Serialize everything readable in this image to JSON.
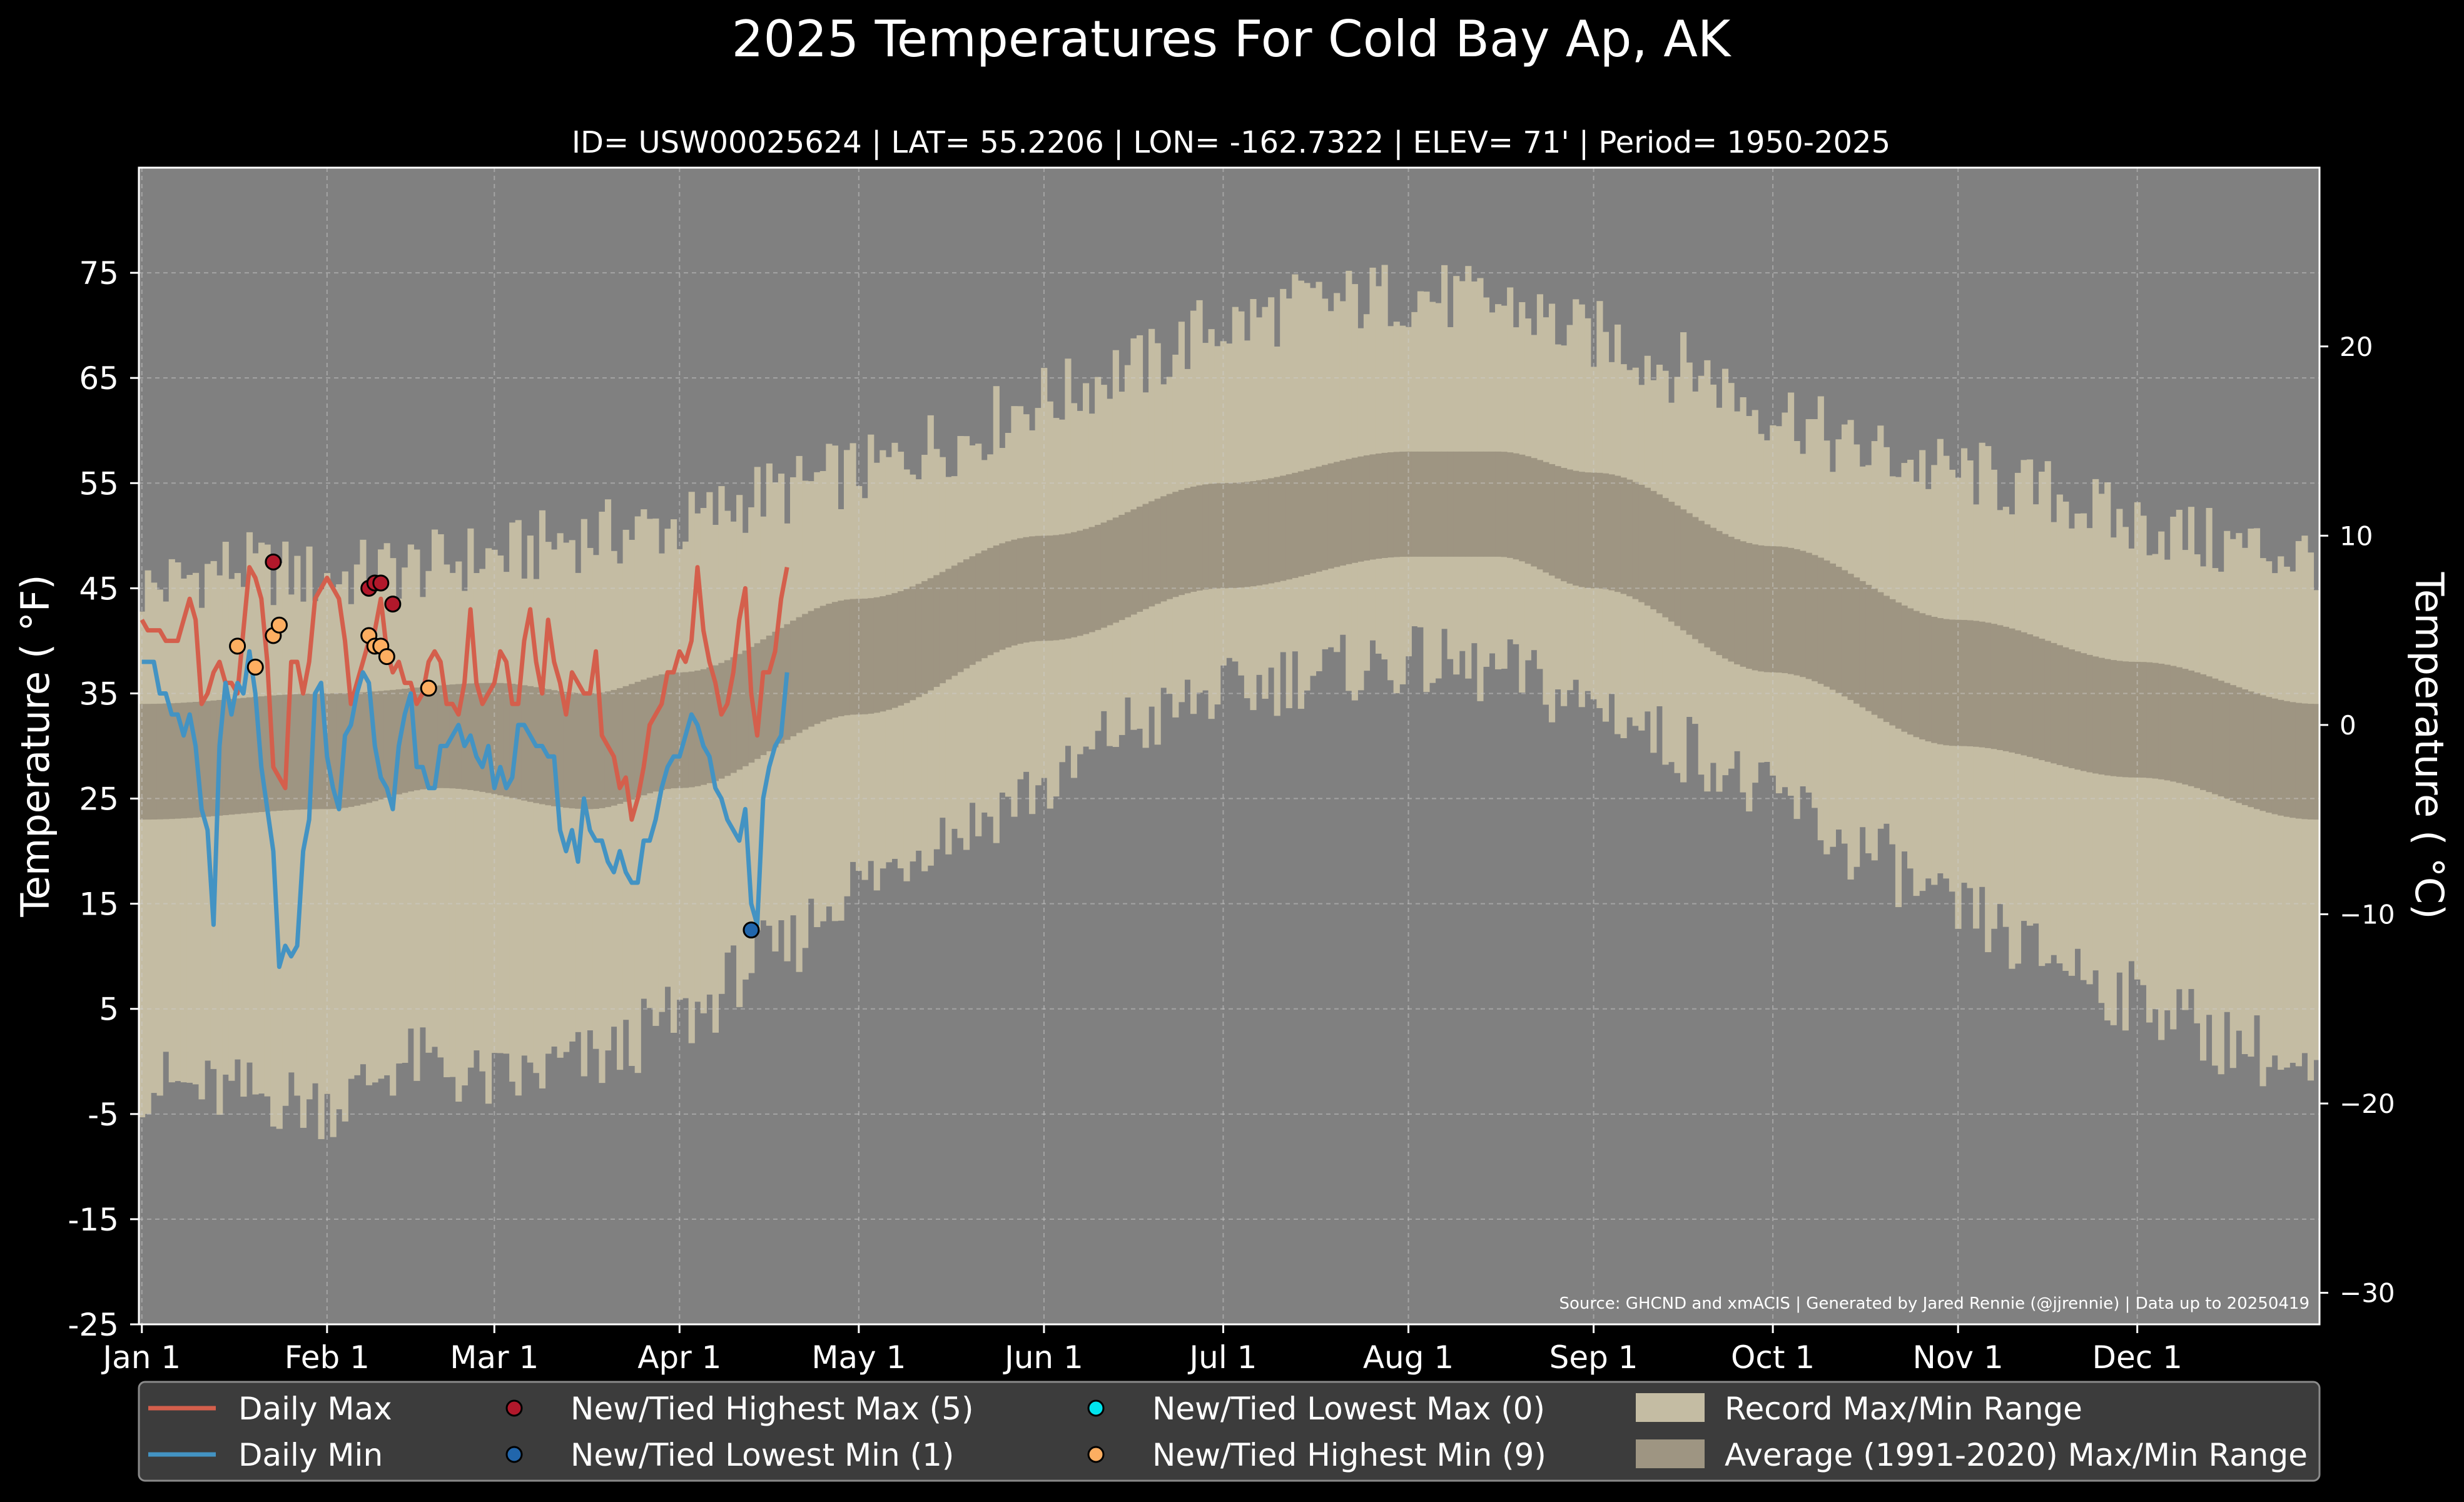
{
  "chart_data": {
    "type": "line",
    "title": "2025 Temperatures For Cold Bay Ap, AK",
    "subtitle": "ID= USW00025624 | LAT= 55.2206 | LON= -162.7322 | ELEV= 71' | Period= 1950-2025",
    "ylabel_left": "Temperature ($^\\circ$F)",
    "ylabel_left_display": "Temperature ( °F)",
    "ylabel_right_display": "Temperature ( °C)",
    "source": "Source: GHCND and xmACIS | Generated by Jared Rennie (@jjrennie) | Data up to 20250419",
    "ylim_f": [
      -25,
      85
    ],
    "xlim_day": [
      -0.5,
      364.5
    ],
    "yticks_left": [
      75,
      65,
      55,
      45,
      35,
      25,
      15,
      5,
      -5,
      -15,
      -25
    ],
    "yticks_left_labels": [
      "75",
      "65",
      "55",
      "45",
      "35",
      "25",
      "15",
      "5",
      "-5",
      "-15",
      "-25"
    ],
    "yticks_right": [
      20,
      10,
      0,
      -10,
      -20,
      -30
    ],
    "yticks_right_labels": [
      "20",
      "10",
      "0",
      "−10",
      "−20",
      "−30"
    ],
    "x_ticks": [
      {
        "label": "Jan 1",
        "day": 0
      },
      {
        "label": "Feb 1",
        "day": 31
      },
      {
        "label": "Mar 1",
        "day": 59
      },
      {
        "label": "Apr 1",
        "day": 90
      },
      {
        "label": "May 1",
        "day": 120
      },
      {
        "label": "Jun 1",
        "day": 151
      },
      {
        "label": "Jul 1",
        "day": 181
      },
      {
        "label": "Aug 1",
        "day": 212
      },
      {
        "label": "Sep 1",
        "day": 243
      },
      {
        "label": "Oct 1",
        "day": 273
      },
      {
        "label": "Nov 1",
        "day": 304
      },
      {
        "label": "Dec 1",
        "day": 334
      }
    ],
    "grid": true,
    "legend_position": "bottom",
    "colors": {
      "background": "#000000",
      "plot_background": "#808080",
      "record_range": "#c4bca3",
      "average_range": "#9e9582",
      "daily_max": "#d45f4c",
      "daily_min": "#4393c3",
      "highest_max_marker": "#b2182b",
      "lowest_min_marker": "#2166ac",
      "lowest_max_marker": "#00e5ee",
      "highest_min_marker": "#fdae61",
      "legend_bg": "#3c3c3c"
    },
    "record_max_anchors": [
      [
        0,
        45
      ],
      [
        15,
        47
      ],
      [
        31,
        46
      ],
      [
        45,
        47
      ],
      [
        59,
        48
      ],
      [
        75,
        50
      ],
      [
        90,
        51
      ],
      [
        105,
        54
      ],
      [
        120,
        56
      ],
      [
        135,
        59
      ],
      [
        151,
        63
      ],
      [
        166,
        66
      ],
      [
        181,
        70
      ],
      [
        196,
        72
      ],
      [
        212,
        73
      ],
      [
        227,
        72
      ],
      [
        243,
        69
      ],
      [
        258,
        66
      ],
      [
        273,
        62
      ],
      [
        288,
        58
      ],
      [
        304,
        56
      ],
      [
        319,
        54
      ],
      [
        334,
        51
      ],
      [
        350,
        49
      ],
      [
        364,
        48
      ]
    ],
    "record_min_anchors": [
      [
        0,
        -2
      ],
      [
        15,
        -3
      ],
      [
        31,
        -4
      ],
      [
        45,
        0
      ],
      [
        59,
        -2
      ],
      [
        75,
        0
      ],
      [
        90,
        4
      ],
      [
        105,
        10
      ],
      [
        120,
        17
      ],
      [
        135,
        22
      ],
      [
        151,
        26
      ],
      [
        166,
        32
      ],
      [
        181,
        35
      ],
      [
        196,
        37
      ],
      [
        212,
        38
      ],
      [
        227,
        37
      ],
      [
        243,
        34
      ],
      [
        258,
        30
      ],
      [
        273,
        25
      ],
      [
        288,
        20
      ],
      [
        304,
        14
      ],
      [
        319,
        10
      ],
      [
        334,
        6
      ],
      [
        350,
        2
      ],
      [
        364,
        -2
      ]
    ],
    "avg_max_anchors": [
      [
        0,
        34
      ],
      [
        31,
        35
      ],
      [
        59,
        36
      ],
      [
        75,
        35
      ],
      [
        90,
        37
      ],
      [
        120,
        44
      ],
      [
        151,
        50
      ],
      [
        181,
        55
      ],
      [
        212,
        58
      ],
      [
        227,
        58
      ],
      [
        243,
        56
      ],
      [
        273,
        49
      ],
      [
        304,
        42
      ],
      [
        334,
        38
      ],
      [
        364,
        34
      ]
    ],
    "avg_min_anchors": [
      [
        0,
        23
      ],
      [
        31,
        24
      ],
      [
        50,
        26
      ],
      [
        75,
        24
      ],
      [
        90,
        26
      ],
      [
        120,
        33
      ],
      [
        151,
        40
      ],
      [
        181,
        45
      ],
      [
        212,
        48
      ],
      [
        227,
        48
      ],
      [
        243,
        45
      ],
      [
        273,
        37
      ],
      [
        304,
        30
      ],
      [
        334,
        27
      ],
      [
        364,
        23
      ]
    ],
    "series": [
      {
        "name": "Daily Max",
        "x": [
          0,
          1,
          2,
          3,
          4,
          5,
          6,
          7,
          8,
          9,
          10,
          11,
          12,
          13,
          14,
          15,
          16,
          17,
          18,
          19,
          20,
          21,
          22,
          23,
          24,
          25,
          26,
          27,
          28,
          29,
          30,
          31,
          32,
          33,
          34,
          35,
          36,
          37,
          38,
          39,
          40,
          41,
          42,
          43,
          44,
          45,
          46,
          47,
          48,
          49,
          50,
          51,
          52,
          53,
          54,
          55,
          56,
          57,
          58,
          59,
          60,
          61,
          62,
          63,
          64,
          65,
          66,
          67,
          68,
          69,
          70,
          71,
          72,
          73,
          74,
          75,
          76,
          77,
          78,
          79,
          80,
          81,
          82,
          83,
          84,
          85,
          86,
          87,
          88,
          89,
          90,
          91,
          92,
          93,
          94,
          95,
          96,
          97,
          98,
          99,
          100,
          101,
          102,
          103,
          104,
          105,
          106,
          107,
          108
        ],
        "values": [
          42,
          41,
          41,
          41,
          40,
          40,
          40,
          42,
          44,
          42,
          34,
          35,
          37,
          38,
          36,
          36,
          35,
          41,
          47,
          46,
          44,
          38,
          28,
          27,
          26,
          38,
          38,
          35,
          38,
          44,
          45,
          46,
          45,
          44,
          40,
          34,
          36,
          38,
          40,
          41,
          44,
          39,
          37,
          38,
          36,
          36,
          34,
          35,
          38,
          39,
          38,
          34,
          34,
          33,
          36,
          43,
          36,
          34,
          35,
          36,
          39,
          38,
          34,
          34,
          40,
          43,
          38,
          35,
          42,
          38,
          36,
          33,
          37,
          36,
          35,
          35,
          39,
          31,
          30,
          29,
          26,
          27,
          23,
          25,
          28,
          32,
          33,
          34,
          37,
          37,
          39,
          38,
          40,
          47,
          41,
          38,
          36,
          33,
          34,
          37,
          42,
          45,
          35,
          31,
          37,
          37,
          39,
          44,
          47
        ]
      },
      {
        "name": "Daily Min",
        "x": [
          0,
          1,
          2,
          3,
          4,
          5,
          6,
          7,
          8,
          9,
          10,
          11,
          12,
          13,
          14,
          15,
          16,
          17,
          18,
          19,
          20,
          21,
          22,
          23,
          24,
          25,
          26,
          27,
          28,
          29,
          30,
          31,
          32,
          33,
          34,
          35,
          36,
          37,
          38,
          39,
          40,
          41,
          42,
          43,
          44,
          45,
          46,
          47,
          48,
          49,
          50,
          51,
          52,
          53,
          54,
          55,
          56,
          57,
          58,
          59,
          60,
          61,
          62,
          63,
          64,
          65,
          66,
          67,
          68,
          69,
          70,
          71,
          72,
          73,
          74,
          75,
          76,
          77,
          78,
          79,
          80,
          81,
          82,
          83,
          84,
          85,
          86,
          87,
          88,
          89,
          90,
          91,
          92,
          93,
          94,
          95,
          96,
          97,
          98,
          99,
          100,
          101,
          102,
          103,
          104,
          105,
          106,
          107,
          108
        ],
        "values": [
          38,
          38,
          38,
          35,
          35,
          33,
          33,
          31,
          33,
          30,
          24,
          22,
          13,
          30,
          36,
          33,
          36,
          35,
          39,
          35,
          28,
          24,
          20,
          9,
          11,
          10,
          11,
          20,
          23,
          35,
          36,
          29,
          26,
          24,
          31,
          32,
          35,
          37,
          36,
          30,
          27,
          26,
          24,
          30,
          33,
          35,
          28,
          28,
          26,
          26,
          30,
          30,
          31,
          32,
          30,
          31,
          29,
          28,
          30,
          26,
          28,
          26,
          27,
          32,
          32,
          31,
          30,
          30,
          29,
          29,
          22,
          20,
          22,
          19,
          25,
          22,
          21,
          21,
          19,
          18,
          20,
          18,
          17,
          17,
          21,
          21,
          23,
          26,
          28,
          29,
          29,
          31,
          33,
          32,
          30,
          29,
          26,
          25,
          23,
          22,
          21,
          24,
          15,
          13,
          25,
          28,
          30,
          31,
          37
        ]
      }
    ],
    "markers": [
      {
        "name": "New/Tied Highest Max (5)",
        "points": [
          [
            22,
            47.5
          ],
          [
            38,
            45
          ],
          [
            39,
            45.5
          ],
          [
            40,
            45.5
          ],
          [
            42,
            43.5
          ]
        ]
      },
      {
        "name": "New/Tied Lowest Min (1)",
        "points": [
          [
            102,
            12.5
          ]
        ]
      },
      {
        "name": "New/Tied Lowest Max (0)",
        "points": []
      },
      {
        "name": "New/Tied Highest Min (9)",
        "points": [
          [
            16,
            39.5
          ],
          [
            19,
            37.5
          ],
          [
            22,
            40.5
          ],
          [
            23,
            41.5
          ],
          [
            38,
            40.5
          ],
          [
            39,
            39.5
          ],
          [
            40,
            39.5
          ],
          [
            41,
            38.5
          ],
          [
            48,
            35.5
          ]
        ]
      }
    ]
  },
  "legend": {
    "items": [
      {
        "label": "Daily Max",
        "kind": "line",
        "color": "#d45f4c"
      },
      {
        "label": "Daily Min",
        "kind": "line",
        "color": "#4393c3"
      },
      {
        "label": "New/Tied Highest Max (5)",
        "kind": "dot",
        "color": "#b2182b"
      },
      {
        "label": "New/Tied Lowest Min (1)",
        "kind": "dot",
        "color": "#2166ac"
      },
      {
        "label": "New/Tied Lowest Max (0)",
        "kind": "dot",
        "color": "#00e5ee"
      },
      {
        "label": "New/Tied Highest Min (9)",
        "kind": "dot",
        "color": "#fdae61"
      },
      {
        "label": "Record Max/Min Range",
        "kind": "patch",
        "color": "#c4bca3"
      },
      {
        "label": "Average (1991-2020) Max/Min Range",
        "kind": "patch",
        "color": "#9e9582"
      }
    ]
  }
}
